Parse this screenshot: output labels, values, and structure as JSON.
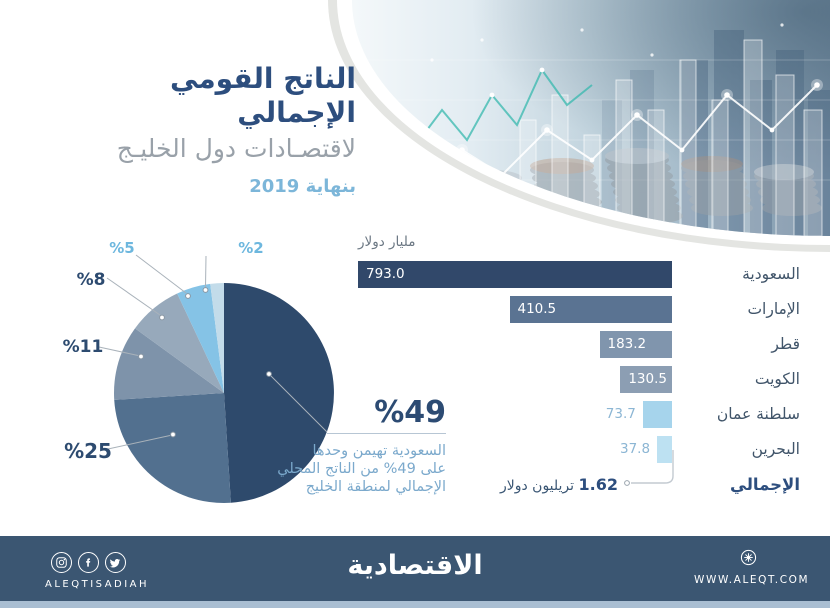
{
  "header": {
    "title_line1": "الناتج القومي الإجمالي",
    "title_line2": "لاقتصـادات دول الخليـج",
    "title_line3": "بنهاية 2019"
  },
  "chart_data": [
    {
      "type": "pie",
      "title": "حصص دول الخليج من الناتج القومي الإجمالي بنهاية 2019",
      "labels": [
        "%49",
        "%25",
        "%11",
        "%8",
        "%5",
        "%2"
      ],
      "values": [
        49,
        25,
        11,
        8,
        5,
        2
      ],
      "colors": [
        "#2e4a6c",
        "#52708f",
        "#7e93aa",
        "#97a9bb",
        "#85c3e6",
        "#c3dcea"
      ],
      "start_angle_deg": 0,
      "direction": "clockwise",
      "annotation_lines": [
        "السعودية تهيمن وحدها",
        "على 49% من الناتج المحلي",
        "الإجمالي لمنطقة الخليج"
      ]
    },
    {
      "type": "bar",
      "orientation": "horizontal-rtl",
      "unit": "مليار دولار",
      "categories": [
        "السعودية",
        "الإمارات",
        "قطر",
        "الكويت",
        "سلطنة عمان",
        "البحرين"
      ],
      "values": [
        793.0,
        410.5,
        183.2,
        130.5,
        73.7,
        37.8
      ],
      "colors": [
        "#31486a",
        "#5a7392",
        "#8095ad",
        "#8c9eb3",
        "#a6d4ec",
        "#bde1f2"
      ],
      "xmax": 793,
      "total_label": "الإجمالي",
      "total_value": "1.62",
      "total_unit": "تريليون دولار"
    }
  ],
  "callout": {
    "big_label": "%49"
  },
  "footer": {
    "handle": "ALEQTISADIAH",
    "logo": "الاقتصادية",
    "website": "WWW.ALEQT.COM"
  },
  "colors": {
    "title_navy": "#2d4e7e",
    "title_gray": "#99a1a9",
    "title_lightblue": "#7cb6d9",
    "annotation_blue": "#7ba9cc",
    "footer_bg": "#3b5672",
    "footer_strip": "#a9bed2"
  }
}
